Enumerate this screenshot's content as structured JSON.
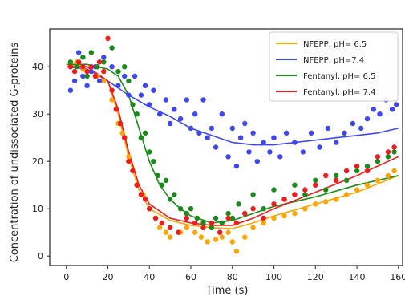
{
  "chart_data": {
    "type": "scatter",
    "xlabel": "Time (s)",
    "ylabel": "Concentration of undissociated G-proteins",
    "xlim": [
      -8,
      162
    ],
    "ylim": [
      -2,
      48
    ],
    "xticks": [
      0,
      20,
      40,
      60,
      80,
      100,
      120,
      140,
      160
    ],
    "yticks": [
      0,
      10,
      20,
      30,
      40
    ],
    "grid": false,
    "legend_position": "top-right",
    "series": [
      {
        "name": "NFEPP, pH= 6.5",
        "color": "#ffa500",
        "fit": [
          [
            0,
            40.5
          ],
          [
            10,
            40
          ],
          [
            20,
            37
          ],
          [
            25,
            30
          ],
          [
            30,
            21
          ],
          [
            35,
            14
          ],
          [
            40,
            10
          ],
          [
            50,
            7.5
          ],
          [
            60,
            6.5
          ],
          [
            70,
            6
          ],
          [
            80,
            5.8
          ],
          [
            90,
            7
          ],
          [
            100,
            8.5
          ],
          [
            120,
            11
          ],
          [
            140,
            13.5
          ],
          [
            160,
            17
          ]
        ],
        "points": [
          [
            2,
            40
          ],
          [
            5,
            41
          ],
          [
            8,
            39.5
          ],
          [
            12,
            39
          ],
          [
            15,
            38
          ],
          [
            18,
            37
          ],
          [
            22,
            33
          ],
          [
            25,
            28
          ],
          [
            27,
            26
          ],
          [
            30,
            21
          ],
          [
            32,
            18
          ],
          [
            34,
            15
          ],
          [
            37,
            13
          ],
          [
            40,
            10
          ],
          [
            43,
            8
          ],
          [
            45,
            6
          ],
          [
            48,
            5
          ],
          [
            50,
            4
          ],
          [
            55,
            5
          ],
          [
            58,
            6
          ],
          [
            62,
            5
          ],
          [
            65,
            4
          ],
          [
            68,
            3
          ],
          [
            72,
            3.5
          ],
          [
            75,
            4
          ],
          [
            78,
            5
          ],
          [
            80,
            3
          ],
          [
            82,
            1
          ],
          [
            86,
            4
          ],
          [
            90,
            6
          ],
          [
            95,
            7
          ],
          [
            100,
            8
          ],
          [
            105,
            8.5
          ],
          [
            110,
            9
          ],
          [
            115,
            10
          ],
          [
            120,
            11
          ],
          [
            125,
            11.5
          ],
          [
            130,
            12
          ],
          [
            135,
            13
          ],
          [
            140,
            14
          ],
          [
            145,
            15
          ],
          [
            150,
            16
          ],
          [
            155,
            17
          ],
          [
            158,
            18
          ]
        ]
      },
      {
        "name": "NFEPP, pH=7.4",
        "color": "#3f48f0",
        "fit": [
          [
            0,
            40
          ],
          [
            10,
            39.5
          ],
          [
            20,
            37
          ],
          [
            30,
            34
          ],
          [
            40,
            31.5
          ],
          [
            50,
            29.5
          ],
          [
            60,
            27
          ],
          [
            70,
            25.5
          ],
          [
            80,
            24
          ],
          [
            90,
            23.5
          ],
          [
            100,
            23.5
          ],
          [
            110,
            24
          ],
          [
            120,
            24.5
          ],
          [
            130,
            25
          ],
          [
            140,
            25.5
          ],
          [
            150,
            26
          ],
          [
            160,
            27
          ]
        ],
        "points": [
          [
            2,
            35
          ],
          [
            4,
            37
          ],
          [
            6,
            43
          ],
          [
            8,
            38
          ],
          [
            10,
            36
          ],
          [
            12,
            39
          ],
          [
            14,
            40
          ],
          [
            16,
            37
          ],
          [
            18,
            42
          ],
          [
            22,
            40
          ],
          [
            25,
            36
          ],
          [
            28,
            38
          ],
          [
            30,
            34
          ],
          [
            33,
            38
          ],
          [
            36,
            34
          ],
          [
            38,
            36
          ],
          [
            40,
            32
          ],
          [
            42,
            35
          ],
          [
            45,
            30
          ],
          [
            48,
            33
          ],
          [
            50,
            28
          ],
          [
            52,
            31
          ],
          [
            55,
            29
          ],
          [
            58,
            33
          ],
          [
            60,
            27
          ],
          [
            62,
            30
          ],
          [
            64,
            26
          ],
          [
            66,
            33
          ],
          [
            68,
            25
          ],
          [
            70,
            27
          ],
          [
            72,
            23
          ],
          [
            75,
            30
          ],
          [
            78,
            21
          ],
          [
            80,
            27
          ],
          [
            82,
            19
          ],
          [
            84,
            25
          ],
          [
            86,
            28
          ],
          [
            88,
            22
          ],
          [
            90,
            26
          ],
          [
            92,
            20
          ],
          [
            95,
            24
          ],
          [
            98,
            22
          ],
          [
            100,
            25
          ],
          [
            103,
            21
          ],
          [
            106,
            26
          ],
          [
            110,
            24
          ],
          [
            114,
            22
          ],
          [
            118,
            26
          ],
          [
            122,
            23
          ],
          [
            126,
            27
          ],
          [
            130,
            24
          ],
          [
            134,
            26
          ],
          [
            138,
            28
          ],
          [
            142,
            27
          ],
          [
            145,
            29
          ],
          [
            148,
            31
          ],
          [
            151,
            30
          ],
          [
            154,
            33
          ],
          [
            157,
            31
          ],
          [
            159,
            32
          ]
        ]
      },
      {
        "name": "Fentanyl, pH= 6.5",
        "color": "#1a8a1a",
        "fit": [
          [
            0,
            40.5
          ],
          [
            10,
            40.5
          ],
          [
            20,
            39.5
          ],
          [
            25,
            38
          ],
          [
            30,
            34
          ],
          [
            35,
            27
          ],
          [
            40,
            20
          ],
          [
            45,
            15
          ],
          [
            50,
            12
          ],
          [
            55,
            10
          ],
          [
            60,
            8.5
          ],
          [
            70,
            7
          ],
          [
            80,
            7.5
          ],
          [
            90,
            9
          ],
          [
            100,
            10.5
          ],
          [
            120,
            12.5
          ],
          [
            140,
            15
          ],
          [
            160,
            17
          ]
        ],
        "points": [
          [
            2,
            41
          ],
          [
            5,
            40
          ],
          [
            8,
            42
          ],
          [
            10,
            38
          ],
          [
            12,
            43
          ],
          [
            15,
            40
          ],
          [
            18,
            41
          ],
          [
            22,
            44
          ],
          [
            25,
            39
          ],
          [
            28,
            40
          ],
          [
            30,
            37
          ],
          [
            32,
            32
          ],
          [
            34,
            30
          ],
          [
            36,
            25
          ],
          [
            38,
            26
          ],
          [
            40,
            22
          ],
          [
            42,
            20
          ],
          [
            44,
            17
          ],
          [
            46,
            15
          ],
          [
            48,
            16
          ],
          [
            50,
            12
          ],
          [
            52,
            13
          ],
          [
            55,
            10
          ],
          [
            58,
            9
          ],
          [
            60,
            10
          ],
          [
            63,
            8
          ],
          [
            66,
            7
          ],
          [
            70,
            6
          ],
          [
            72,
            8
          ],
          [
            75,
            7
          ],
          [
            78,
            9
          ],
          [
            80,
            8
          ],
          [
            83,
            11
          ],
          [
            86,
            9
          ],
          [
            90,
            13
          ],
          [
            95,
            10
          ],
          [
            100,
            14
          ],
          [
            105,
            12
          ],
          [
            110,
            15
          ],
          [
            115,
            13
          ],
          [
            120,
            16
          ],
          [
            125,
            14
          ],
          [
            130,
            17
          ],
          [
            135,
            16
          ],
          [
            140,
            18
          ],
          [
            145,
            19
          ],
          [
            150,
            20
          ],
          [
            155,
            21
          ],
          [
            158,
            22
          ]
        ]
      },
      {
        "name": "Fentanyl, pH= 7.4",
        "color": "#ee1c1c",
        "fit": [
          [
            0,
            40
          ],
          [
            10,
            40
          ],
          [
            20,
            37
          ],
          [
            25,
            31
          ],
          [
            30,
            22
          ],
          [
            35,
            15
          ],
          [
            40,
            11
          ],
          [
            50,
            8
          ],
          [
            60,
            7
          ],
          [
            70,
            6.5
          ],
          [
            80,
            6.5
          ],
          [
            90,
            8
          ],
          [
            100,
            10
          ],
          [
            120,
            13.5
          ],
          [
            140,
            17
          ],
          [
            160,
            21
          ]
        ],
        "points": [
          [
            2,
            40
          ],
          [
            4,
            39
          ],
          [
            6,
            41
          ],
          [
            8,
            40
          ],
          [
            10,
            39
          ],
          [
            12,
            40
          ],
          [
            14,
            38
          ],
          [
            16,
            41
          ],
          [
            18,
            39
          ],
          [
            20,
            46
          ],
          [
            22,
            35
          ],
          [
            24,
            31
          ],
          [
            26,
            28
          ],
          [
            28,
            25
          ],
          [
            30,
            20
          ],
          [
            32,
            18
          ],
          [
            34,
            15
          ],
          [
            36,
            13
          ],
          [
            38,
            12
          ],
          [
            40,
            10
          ],
          [
            43,
            8
          ],
          [
            46,
            7
          ],
          [
            50,
            6
          ],
          [
            54,
            5
          ],
          [
            58,
            8
          ],
          [
            62,
            7
          ],
          [
            66,
            6
          ],
          [
            70,
            7
          ],
          [
            74,
            5
          ],
          [
            78,
            8
          ],
          [
            82,
            7
          ],
          [
            86,
            9
          ],
          [
            90,
            10
          ],
          [
            95,
            8
          ],
          [
            100,
            11
          ],
          [
            105,
            12
          ],
          [
            110,
            13
          ],
          [
            115,
            14
          ],
          [
            120,
            15
          ],
          [
            125,
            17
          ],
          [
            130,
            16
          ],
          [
            135,
            18
          ],
          [
            140,
            19
          ],
          [
            145,
            18
          ],
          [
            150,
            21
          ],
          [
            155,
            22
          ],
          [
            158,
            23
          ]
        ]
      }
    ]
  }
}
